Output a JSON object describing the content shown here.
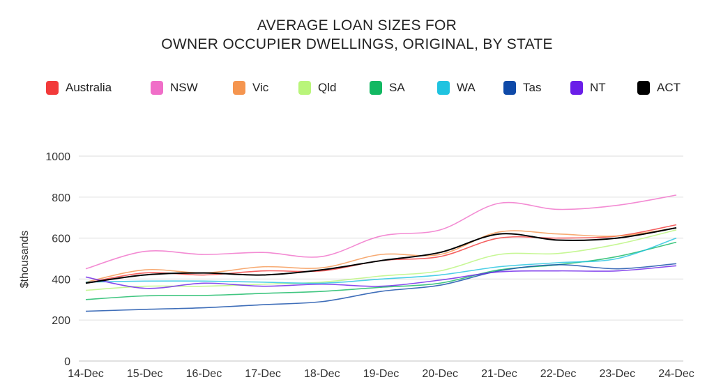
{
  "chart_data": {
    "type": "line",
    "title": "AVERAGE LOAN SIZES FOR OWNER OCCUPIER DWELLINGS, ORIGINAL, BY STATE",
    "title_lines": [
      "AVERAGE LOAN SIZES FOR",
      "OWNER OCCUPIER DWELLINGS, ORIGINAL, BY STATE"
    ],
    "xlabel": "",
    "ylabel": "$thousands",
    "ylim": [
      0,
      1000
    ],
    "yticks": [
      0,
      200,
      400,
      600,
      800,
      1000
    ],
    "grid": true,
    "legend_position": "top",
    "categories": [
      "14-Dec",
      "15-Dec",
      "16-Dec",
      "17-Dec",
      "18-Dec",
      "19-Dec",
      "20-Dec",
      "21-Dec",
      "22-Dec",
      "23-Dec",
      "24-Dec"
    ],
    "series": [
      {
        "name": "Australia",
        "color": "#f23a3a",
        "values": [
          380,
          430,
          420,
          440,
          440,
          490,
          510,
          600,
          600,
          610,
          665
        ]
      },
      {
        "name": "NSW",
        "color": "#f06ec8",
        "values": [
          450,
          535,
          520,
          530,
          510,
          610,
          640,
          770,
          740,
          760,
          810
        ]
      },
      {
        "name": "Vic",
        "color": "#f5954f",
        "values": [
          385,
          445,
          430,
          460,
          455,
          520,
          520,
          630,
          620,
          610,
          650
        ]
      },
      {
        "name": "Qld",
        "color": "#b9f57a",
        "values": [
          345,
          365,
          365,
          375,
          385,
          415,
          440,
          520,
          525,
          570,
          640
        ]
      },
      {
        "name": "SA",
        "color": "#12b862",
        "values": [
          300,
          318,
          320,
          330,
          340,
          360,
          380,
          445,
          470,
          510,
          580
        ]
      },
      {
        "name": "WA",
        "color": "#1fc3e0",
        "values": [
          385,
          390,
          390,
          385,
          380,
          400,
          420,
          460,
          480,
          500,
          600
        ]
      },
      {
        "name": "Tas",
        "color": "#0f4aa8",
        "values": [
          243,
          252,
          260,
          275,
          290,
          340,
          370,
          440,
          470,
          450,
          475
        ]
      },
      {
        "name": "NT",
        "color": "#6a1ee8",
        "values": [
          410,
          355,
          380,
          365,
          375,
          365,
          395,
          435,
          440,
          440,
          465
        ]
      },
      {
        "name": "ACT",
        "color": "#000000",
        "values": [
          380,
          420,
          430,
          420,
          445,
          490,
          530,
          620,
          590,
          600,
          650
        ]
      }
    ]
  }
}
